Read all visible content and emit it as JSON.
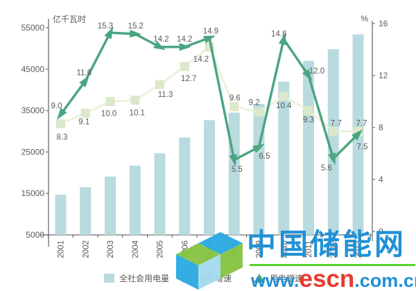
{
  "chart_data": {
    "type": "bar",
    "title": "",
    "categories": [
      "2001",
      "2002",
      "2003",
      "2004",
      "2005",
      "2006",
      "2007",
      "2008",
      "2009",
      "2010",
      "2011",
      "2012",
      "2013"
    ],
    "bar_series": {
      "name": "全社会用电量",
      "unit": "亿千瓦时",
      "axis": "left",
      "values": [
        14700,
        16500,
        19100,
        21700,
        24700,
        28500,
        32700,
        34500,
        36600,
        42000,
        47000,
        49800,
        53400
      ]
    },
    "line_series": [
      {
        "name": "GDP 增速",
        "axis": "right",
        "marker": "square",
        "values": [
          8.3,
          9.1,
          10.0,
          10.1,
          11.3,
          12.7,
          14.2,
          9.6,
          9.2,
          10.4,
          9.3,
          7.7,
          7.7
        ],
        "labels": [
          "8.3",
          "9.1",
          "10.0",
          "10.1",
          "11.3",
          "12.7",
          "14.2",
          "9.6",
          "9.2",
          "10.4",
          "9.3",
          "7.7",
          "7.7"
        ]
      },
      {
        "name": "用电增速",
        "axis": "right",
        "marker": "triangle",
        "values": [
          9.0,
          11.6,
          15.3,
          15.2,
          14.2,
          14.2,
          14.9,
          5.5,
          6.5,
          14.8,
          12.0,
          5.6,
          7.5
        ],
        "labels": [
          "9.0",
          "11.6",
          "15.3",
          "15.2",
          "14.2",
          "14.2",
          "14.9",
          "5.5",
          "6.5",
          "14.8",
          "12.0",
          "5.6",
          "7.5"
        ]
      }
    ],
    "left_axis": {
      "title": "亿千瓦时",
      "min": 5000,
      "max": 55000,
      "tick_labels": [
        "55000",
        "45000",
        "35000",
        "25000",
        "15000",
        "5000"
      ],
      "tick_values": [
        55000,
        45000,
        35000,
        25000,
        15000,
        5000
      ]
    },
    "right_axis": {
      "title": "%",
      "min": 0,
      "max": 16,
      "tick_labels": [
        "16",
        "12",
        "8",
        "4",
        "0"
      ],
      "tick_values": [
        16,
        12,
        8,
        4,
        0
      ]
    },
    "grid": false,
    "legend_position": "bottom",
    "label_offsets": {
      "GDP 增速": [
        [
          2,
          19
        ],
        [
          -2,
          12
        ],
        [
          -2,
          17
        ],
        [
          3,
          18
        ],
        [
          8,
          14
        ],
        [
          6,
          17
        ],
        [
          -12,
          17
        ],
        [
          1,
          -13
        ],
        [
          -7,
          -14
        ],
        [
          0,
          13
        ],
        [
          0,
          13
        ],
        [
          4,
          -12
        ],
        [
          5,
          -12
        ]
      ],
      "用电增速": [
        [
          -6,
          -13
        ],
        [
          -2,
          -12
        ],
        [
          -7,
          -10
        ],
        [
          1,
          -12
        ],
        [
          2,
          -12
        ],
        [
          0,
          -12
        ],
        [
          2,
          -10
        ],
        [
          4,
          13
        ],
        [
          8,
          13
        ],
        [
          -7,
          -8
        ],
        [
          12,
          -7
        ],
        [
          -10,
          13
        ],
        [
          6,
          18
        ]
      ]
    }
  },
  "colors": {
    "bar": "#b9dbdf",
    "gdp_line": "#edf1dd",
    "gdp_marker": "#dce8ca",
    "elec_line": "#4ba581",
    "label_text": "#595959",
    "axis": "#6e6e6e",
    "wm_blue": "#2191d5",
    "wm_red": "#e73a2e",
    "wm_green": "#55d22e",
    "logo_blue": "#29a9e1",
    "logo_green": "#85c440",
    "logo_lightblue": "#a5daf0"
  },
  "watermark": {
    "site_name": "中国储能网",
    "url": {
      "www": "www.",
      "escn": "escn",
      "domain": ".com.cn"
    }
  }
}
